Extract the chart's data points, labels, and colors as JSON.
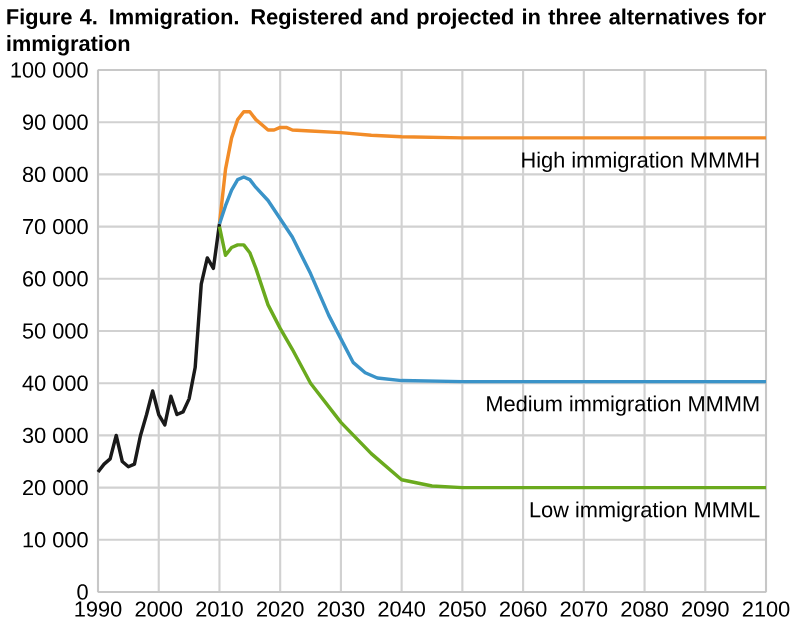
{
  "chart_data": {
    "type": "line",
    "title": "Figure 4. Immigration. Registered and projected in three alternatives for immigration",
    "xlim": [
      1990,
      2100
    ],
    "xticks": [
      1990,
      2000,
      2010,
      2020,
      2030,
      2040,
      2050,
      2060,
      2070,
      2080,
      2090,
      2100
    ],
    "ylim": [
      0,
      100000
    ],
    "yticks": [
      0,
      {
        "value": 10000,
        "label": "10 000"
      },
      {
        "value": 20000,
        "label": "20 000"
      },
      {
        "value": 30000,
        "label": "30 000"
      },
      {
        "value": 40000,
        "label": "40 000"
      },
      {
        "value": 50000,
        "label": "50 000"
      },
      {
        "value": 60000,
        "label": "60 000"
      },
      {
        "value": 70000,
        "label": "70 000"
      },
      {
        "value": 80000,
        "label": "80 000"
      },
      {
        "value": 90000,
        "label": "90 000"
      },
      {
        "value": 100000,
        "label": "100 000"
      }
    ],
    "grid": true,
    "legend": false,
    "marker": "none",
    "line_style": "solid",
    "series": [
      {
        "color": "#1a1a1a",
        "x": [
          1990,
          1991,
          1992,
          1993,
          1994,
          1995,
          1996,
          1997,
          1998,
          1999,
          2000,
          2001,
          2002,
          2003,
          2004,
          2005,
          2006,
          2007,
          2008,
          2009,
          2010
        ],
        "values": [
          23000,
          24500,
          25500,
          30000,
          25000,
          24000,
          24500,
          30000,
          34000,
          38500,
          34000,
          32000,
          37500,
          34000,
          34500,
          37000,
          43000,
          59000,
          64000,
          62000,
          70500
        ]
      },
      {
        "name": "High immigration MMMH",
        "color": "#f28c28",
        "x": [
          2010,
          2011,
          2012,
          2013,
          2014,
          2015,
          2016,
          2017,
          2018,
          2019,
          2020,
          2021,
          2022,
          2025,
          2030,
          2035,
          2040,
          2050,
          2100
        ],
        "values": [
          70500,
          81000,
          87000,
          90500,
          92000,
          92000,
          90500,
          89500,
          88500,
          88500,
          89000,
          89000,
          88500,
          88300,
          88000,
          87500,
          87200,
          87000,
          87000
        ]
      },
      {
        "name": "Medium immigration MMMM",
        "color": "#3a93c8",
        "x": [
          2010,
          2011,
          2012,
          2013,
          2014,
          2015,
          2016,
          2018,
          2020,
          2022,
          2025,
          2028,
          2030,
          2032,
          2034,
          2036,
          2040,
          2050,
          2100
        ],
        "values": [
          70500,
          74000,
          77000,
          79000,
          79500,
          79000,
          77500,
          75000,
          71500,
          68000,
          61000,
          53000,
          48500,
          44000,
          42000,
          41000,
          40500,
          40300,
          40300
        ]
      },
      {
        "name": "Low immigration MMML",
        "color": "#6aaa1e",
        "x": [
          2010,
          2011,
          2012,
          2013,
          2014,
          2015,
          2016,
          2018,
          2020,
          2022,
          2025,
          2030,
          2035,
          2040,
          2045,
          2050,
          2100
        ],
        "values": [
          70000,
          64500,
          66000,
          66500,
          66500,
          65000,
          62000,
          55000,
          50500,
          46500,
          40000,
          32500,
          26500,
          21500,
          20300,
          20000,
          20000
        ]
      }
    ]
  }
}
